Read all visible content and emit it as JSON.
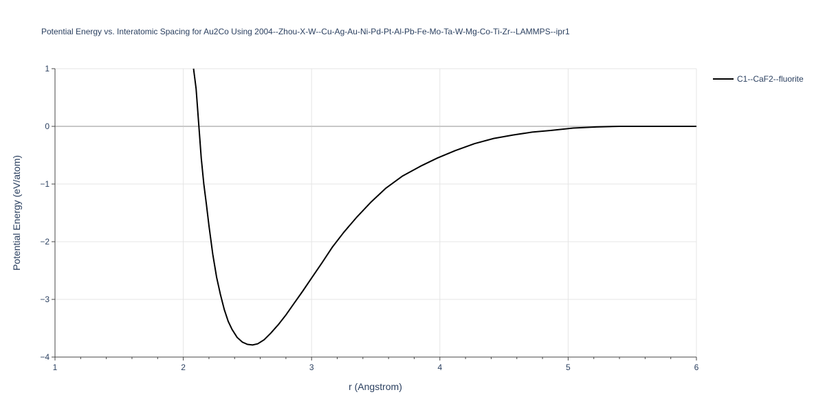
{
  "chart_data": {
    "type": "line",
    "title": "Potential Energy vs. Interatomic Spacing for Au2Co Using 2004--Zhou-X-W--Cu-Ag-Au-Ni-Pd-Pt-Al-Pb-Fe-Mo-Ta-W-Mg-Co-Ti-Zr--LAMMPS--ipr1",
    "xlabel": "r (Angstrom)",
    "ylabel": "Potential Energy (eV/atom)",
    "xlim": [
      1,
      6
    ],
    "ylim": [
      -4,
      1
    ],
    "x_ticks": [
      1,
      2,
      3,
      4,
      5,
      6
    ],
    "y_ticks": [
      1,
      0,
      -1,
      -2,
      -3,
      -4
    ],
    "x_tick_labels": [
      "1",
      "2",
      "3",
      "4",
      "5",
      "6"
    ],
    "y_tick_labels": [
      "1",
      "0",
      "−1",
      "−2",
      "−3",
      "−4"
    ],
    "grid": true,
    "legend_position": "top-right",
    "series": [
      {
        "name": "C1--CaF2--fluorite",
        "color": "#000000",
        "x": [
          2.08,
          2.1,
          2.12,
          2.14,
          2.16,
          2.18,
          2.2,
          2.23,
          2.26,
          2.29,
          2.32,
          2.35,
          2.38,
          2.42,
          2.46,
          2.5,
          2.54,
          2.58,
          2.63,
          2.68,
          2.74,
          2.8,
          2.86,
          2.93,
          3.0,
          3.08,
          3.16,
          3.25,
          3.35,
          3.46,
          3.58,
          3.71,
          3.85,
          3.98,
          4.12,
          4.27,
          4.42,
          4.57,
          4.72,
          4.87,
          5.04,
          5.22,
          5.4,
          5.6,
          5.8,
          6.0
        ],
        "y": [
          1.0,
          0.65,
          0.05,
          -0.55,
          -1.0,
          -1.35,
          -1.72,
          -2.22,
          -2.62,
          -2.92,
          -3.18,
          -3.38,
          -3.52,
          -3.66,
          -3.74,
          -3.78,
          -3.79,
          -3.77,
          -3.7,
          -3.59,
          -3.44,
          -3.27,
          -3.08,
          -2.86,
          -2.63,
          -2.37,
          -2.1,
          -1.84,
          -1.58,
          -1.32,
          -1.07,
          -0.86,
          -0.69,
          -0.55,
          -0.42,
          -0.3,
          -0.21,
          -0.15,
          -0.1,
          -0.07,
          -0.03,
          -0.01,
          0.0,
          0.0,
          0.0,
          0.0
        ]
      }
    ]
  }
}
